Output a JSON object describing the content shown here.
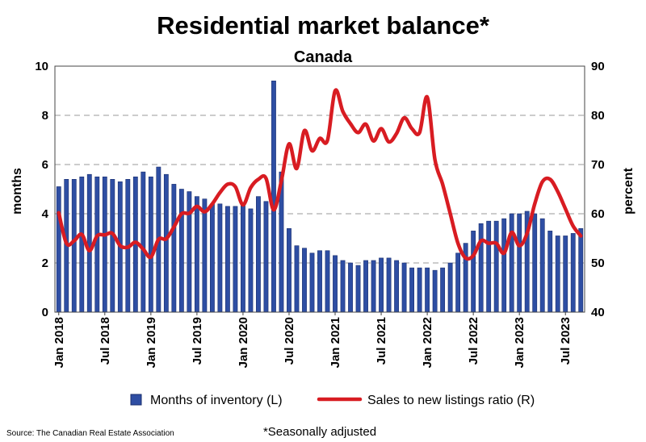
{
  "chart_data": {
    "type": "bar+line",
    "title": "Residential market balance*",
    "subtitle": "Canada",
    "ylabel_left": "months",
    "ylabel_right": "percent",
    "ylim_left": [
      0,
      10
    ],
    "ylim_right": [
      40,
      90
    ],
    "y_ticks_left": [
      "0",
      "2",
      "4",
      "6",
      "8",
      "10"
    ],
    "y_ticks_right": [
      "40",
      "50",
      "60",
      "70",
      "80",
      "90"
    ],
    "x_tick_labels": [
      "Jan 2018",
      "Jul 2018",
      "Jan 2019",
      "Jul 2019",
      "Jan 2020",
      "Jul 2020",
      "Jan 2021",
      "Jul 2021",
      "Jan 2022",
      "Jul 2022",
      "Jan 2023",
      "Jul 2023"
    ],
    "grid": true,
    "legend_position": "bottom",
    "source": "Source: The Canadian Real Estate Association",
    "footnote": "*Seasonally adjusted",
    "series": [
      {
        "name": "Months of inventory (L)",
        "type": "bar",
        "axis": "left",
        "color": "#2e4ea3",
        "values": [
          5.1,
          5.4,
          5.4,
          5.5,
          5.6,
          5.5,
          5.5,
          5.4,
          5.3,
          5.4,
          5.5,
          5.7,
          5.5,
          5.9,
          5.6,
          5.2,
          5.0,
          4.9,
          4.7,
          4.6,
          4.4,
          4.4,
          4.3,
          4.3,
          4.4,
          4.2,
          4.7,
          4.5,
          9.4,
          5.7,
          3.4,
          2.7,
          2.6,
          2.4,
          2.5,
          2.5,
          2.3,
          2.1,
          2.0,
          1.9,
          2.1,
          2.1,
          2.2,
          2.2,
          2.1,
          2.0,
          1.8,
          1.8,
          1.8,
          1.7,
          1.8,
          2.0,
          2.4,
          2.8,
          3.3,
          3.6,
          3.7,
          3.7,
          3.8,
          4.0,
          4.0,
          4.1,
          4.0,
          3.8,
          3.3,
          3.1,
          3.1,
          3.2,
          3.4
        ]
      },
      {
        "name": "Sales to new listings ratio (R)",
        "type": "line",
        "axis": "right",
        "color": "#d81c22",
        "values": [
          60.2,
          54.0,
          54.5,
          55.8,
          52.5,
          55.5,
          55.7,
          56.0,
          53.5,
          53.2,
          54.2,
          52.8,
          51.2,
          54.8,
          54.9,
          57.3,
          60.0,
          60.1,
          61.5,
          60.4,
          62.0,
          64.3,
          66.0,
          65.5,
          61.8,
          65.3,
          67.0,
          67.2,
          60.8,
          66.7,
          74.2,
          69.2,
          76.9,
          72.8,
          75.3,
          74.9,
          85.0,
          80.8,
          78.3,
          76.5,
          78.2,
          74.8,
          77.3,
          74.6,
          76.3,
          79.5,
          77.3,
          76.5,
          83.7,
          71.0,
          66.0,
          60.0,
          54.0,
          51.0,
          51.5,
          54.5,
          54.0,
          54.0,
          52.0,
          56.2,
          53.5,
          56.0,
          62.0,
          66.5,
          67.0,
          64.5,
          61.0,
          57.5,
          55.5
        ]
      }
    ]
  }
}
